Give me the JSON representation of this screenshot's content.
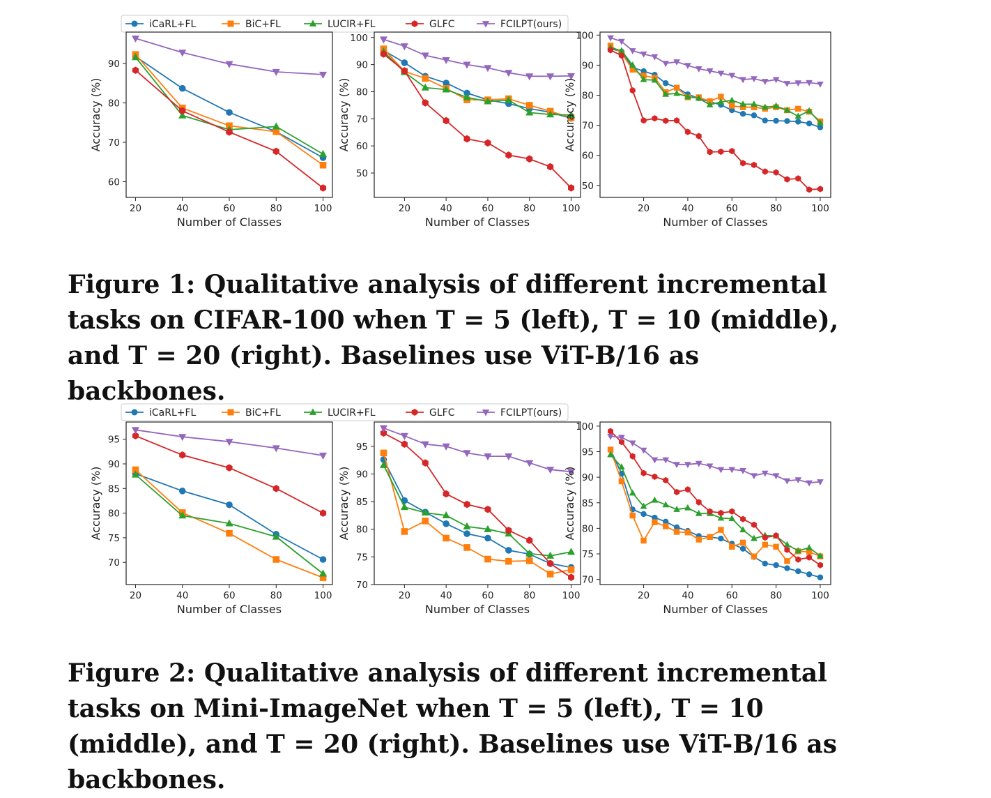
{
  "legend": {
    "entries": [
      {
        "name": "iCaRL+FL",
        "color": "#1f77b4",
        "marker": "circle"
      },
      {
        "name": "BiC+FL",
        "color": "#ff7f0e",
        "marker": "square"
      },
      {
        "name": "LUCIR+FL",
        "color": "#2ca02c",
        "marker": "triangle-up"
      },
      {
        "name": "GLFC",
        "color": "#d62728",
        "marker": "hexagon"
      },
      {
        "name": "FCILPT(ours)",
        "color": "#9467bd",
        "marker": "triangle-down"
      }
    ]
  },
  "figure1": {
    "caption": "Figure 1: Qualitative analysis of different incremental tasks on CIFAR-100 when T = 5 (left), T = 10 (middle), and T = 20 (right). Baselines use ViT-B/16 as backbones."
  },
  "figure2": {
    "caption": "Figure 2: Qualitative analysis of different incremental tasks on Mini-ImageNet when T = 5 (left), T = 10 (middle), and T = 20 (right). Baselines use ViT-B/16 as backbones."
  },
  "chart_data": [
    {
      "type": "line",
      "dataset": "CIFAR-100",
      "tasks": "T = 5",
      "xlabel": "Number of Classes",
      "ylabel": "Accuracy (%)",
      "xlim": [
        16,
        104
      ],
      "ylim": [
        56,
        98
      ],
      "xticks": [
        20,
        40,
        60,
        80,
        100
      ],
      "yticks": [
        60,
        70,
        80,
        90
      ],
      "x": [
        20,
        40,
        60,
        80,
        100
      ],
      "series": [
        {
          "name": "iCaRL+FL",
          "values": [
            91.8,
            83.7,
            77.6,
            72.7,
            66.1
          ]
        },
        {
          "name": "BiC+FL",
          "values": [
            92.3,
            78.7,
            74.2,
            72.7,
            64.2
          ]
        },
        {
          "name": "LUCIR+FL",
          "values": [
            91.6,
            76.8,
            73.2,
            74.0,
            67.0
          ]
        },
        {
          "name": "GLFC",
          "values": [
            88.3,
            78.0,
            72.6,
            67.7,
            58.4
          ]
        },
        {
          "name": "FCILPT(ours)",
          "values": [
            96.4,
            92.8,
            89.9,
            87.9,
            87.2
          ]
        }
      ]
    },
    {
      "type": "line",
      "dataset": "CIFAR-100",
      "tasks": "T = 10",
      "xlabel": "Number of Classes",
      "ylabel": "Accuracy (%)",
      "xlim": [
        5.5,
        104.5
      ],
      "ylim": [
        41,
        102
      ],
      "xticks": [
        20,
        40,
        60,
        80,
        100
      ],
      "yticks": [
        50,
        60,
        70,
        80,
        90,
        100
      ],
      "x": [
        10,
        20,
        30,
        40,
        50,
        60,
        70,
        80,
        90,
        100
      ],
      "series": [
        {
          "name": "iCaRL+FL",
          "values": [
            95.2,
            90.7,
            85.7,
            83.2,
            79.5,
            77.0,
            75.6,
            73.8,
            72.4,
            70.2
          ]
        },
        {
          "name": "BiC+FL",
          "values": [
            95.8,
            87.5,
            84.9,
            81.2,
            77.0,
            77.0,
            77.4,
            75.0,
            72.8,
            70.4
          ]
        },
        {
          "name": "LUCIR+FL",
          "values": [
            94.8,
            87.2,
            81.5,
            80.8,
            77.9,
            76.4,
            76.9,
            72.3,
            71.6,
            71.4
          ]
        },
        {
          "name": "GLFC",
          "values": [
            93.9,
            87.7,
            75.9,
            69.3,
            62.6,
            61.1,
            56.6,
            55.2,
            52.3,
            44.5
          ]
        },
        {
          "name": "FCILPT(ours)",
          "values": [
            99.3,
            96.8,
            93.4,
            91.7,
            90.0,
            88.8,
            87.0,
            85.7,
            85.7,
            85.8
          ]
        }
      ]
    },
    {
      "type": "line",
      "dataset": "CIFAR-100",
      "tasks": "T = 20",
      "xlabel": "Number of Classes",
      "ylabel": "Accuracy (%)",
      "xlim": [
        0.25,
        104.75
      ],
      "ylim": [
        46,
        101
      ],
      "xticks": [
        20,
        40,
        60,
        80,
        100
      ],
      "yticks": [
        50,
        60,
        70,
        80,
        90,
        100
      ],
      "x": [
        5,
        10,
        15,
        20,
        25,
        30,
        35,
        40,
        45,
        50,
        55,
        60,
        65,
        70,
        75,
        80,
        85,
        90,
        95,
        100
      ],
      "series": [
        {
          "name": "iCaRL+FL",
          "values": [
            95.5,
            94.5,
            89.2,
            88.0,
            86.8,
            84.0,
            82.5,
            80.3,
            79.0,
            77.8,
            76.8,
            75.0,
            73.8,
            73.3,
            71.6,
            71.5,
            71.4,
            71.2,
            70.6,
            69.3
          ]
        },
        {
          "name": "BiC+FL",
          "values": [
            96.5,
            94.0,
            88.5,
            86.5,
            85.8,
            81.0,
            82.5,
            79.3,
            79.3,
            78.0,
            79.5,
            76.5,
            76.0,
            76.0,
            75.5,
            76.0,
            75.0,
            75.5,
            74.5,
            71.3
          ]
        },
        {
          "name": "LUCIR+FL",
          "values": [
            95.8,
            94.8,
            90.0,
            85.2,
            85.0,
            80.3,
            80.6,
            79.5,
            79.0,
            76.8,
            77.8,
            78.3,
            77.0,
            77.0,
            76.0,
            76.4,
            75.0,
            73.0,
            74.8,
            70.8
          ]
        },
        {
          "name": "GLFC",
          "values": [
            95.0,
            93.2,
            81.6,
            71.6,
            72.3,
            71.5,
            71.6,
            67.8,
            66.4,
            61.1,
            61.2,
            61.4,
            57.4,
            56.8,
            54.6,
            54.3,
            52.0,
            52.3,
            48.6,
            48.8
          ]
        },
        {
          "name": "FCILPT(ours)",
          "values": [
            99.1,
            97.9,
            94.8,
            93.7,
            92.8,
            90.6,
            91.1,
            89.9,
            88.8,
            88.1,
            87.3,
            86.6,
            85.2,
            85.5,
            84.6,
            85.2,
            83.9,
            84.1,
            84.2,
            83.7
          ]
        }
      ]
    },
    {
      "type": "line",
      "dataset": "Mini-ImageNet",
      "tasks": "T = 5",
      "xlabel": "Number of Classes",
      "ylabel": "Accuracy (%)",
      "xlim": [
        16,
        104
      ],
      "ylim": [
        65.5,
        98.5
      ],
      "xticks": [
        20,
        40,
        60,
        80,
        100
      ],
      "yticks": [
        70,
        75,
        80,
        85,
        90,
        95
      ],
      "x": [
        20,
        40,
        60,
        80,
        100
      ],
      "series": [
        {
          "name": "iCaRL+FL",
          "values": [
            88.0,
            84.5,
            81.7,
            75.7,
            70.6
          ]
        },
        {
          "name": "BiC+FL",
          "values": [
            88.8,
            80.1,
            75.9,
            70.6,
            66.9
          ]
        },
        {
          "name": "LUCIR+FL",
          "values": [
            87.8,
            79.5,
            77.9,
            75.2,
            67.7
          ]
        },
        {
          "name": "GLFC",
          "values": [
            95.7,
            91.8,
            89.2,
            85.0,
            80.0
          ]
        },
        {
          "name": "FCILPT(ours)",
          "values": [
            96.9,
            95.5,
            94.5,
            93.2,
            91.7
          ]
        }
      ]
    },
    {
      "type": "line",
      "dataset": "Mini-ImageNet",
      "tasks": "T = 10",
      "xlabel": "Number of Classes",
      "ylabel": "Accuracy (%)",
      "xlim": [
        5.5,
        104.5
      ],
      "ylim": [
        70,
        99.4
      ],
      "xticks": [
        20,
        40,
        60,
        80,
        100
      ],
      "yticks": [
        70,
        75,
        80,
        85,
        90,
        95
      ],
      "x": [
        10,
        20,
        30,
        40,
        50,
        60,
        70,
        80,
        90,
        100
      ],
      "series": [
        {
          "name": "iCaRL+FL",
          "values": [
            92.6,
            85.2,
            83.1,
            81.0,
            79.2,
            78.4,
            76.2,
            75.5,
            73.8,
            73.1
          ]
        },
        {
          "name": "BiC+FL",
          "values": [
            93.8,
            79.6,
            81.5,
            78.4,
            76.7,
            74.6,
            74.2,
            74.3,
            71.9,
            72.7
          ]
        },
        {
          "name": "LUCIR+FL",
          "values": [
            91.6,
            84.0,
            83.0,
            82.5,
            80.5,
            80.0,
            79.2,
            75.6,
            75.2,
            75.9
          ]
        },
        {
          "name": "GLFC",
          "values": [
            97.4,
            95.4,
            92.0,
            86.4,
            84.5,
            83.6,
            79.8,
            78.0,
            73.8,
            71.3
          ]
        },
        {
          "name": "FCILPT(ours)",
          "values": [
            98.3,
            96.9,
            95.4,
            95.0,
            93.8,
            93.2,
            93.2,
            92.0,
            90.8,
            90.4
          ]
        }
      ]
    },
    {
      "type": "line",
      "dataset": "Mini-ImageNet",
      "tasks": "T = 20",
      "xlabel": "Number of Classes",
      "ylabel": "Accuracy (%)",
      "xlim": [
        0.25,
        104.75
      ],
      "ylim": [
        69,
        100.8
      ],
      "xticks": [
        20,
        40,
        60,
        80,
        100
      ],
      "yticks": [
        70,
        75,
        80,
        85,
        90,
        95,
        100
      ],
      "x": [
        5,
        10,
        15,
        20,
        25,
        30,
        35,
        40,
        45,
        50,
        55,
        60,
        65,
        70,
        75,
        80,
        85,
        90,
        95,
        100
      ],
      "series": [
        {
          "name": "iCaRL+FL",
          "values": [
            95.4,
            90.7,
            83.7,
            82.8,
            82.1,
            81.3,
            80.2,
            79.5,
            78.5,
            78.3,
            78.0,
            77.0,
            76.0,
            74.4,
            73.1,
            72.8,
            72.2,
            71.6,
            71.0,
            70.4
          ]
        },
        {
          "name": "BiC+FL",
          "values": [
            95.4,
            89.2,
            82.5,
            77.6,
            81.2,
            80.4,
            79.3,
            79.2,
            77.8,
            78.3,
            79.7,
            76.4,
            77.2,
            74.5,
            76.8,
            76.4,
            73.6,
            75.5,
            75.4,
            74.5
          ]
        },
        {
          "name": "LUCIR+FL",
          "values": [
            94.4,
            92.0,
            86.9,
            84.3,
            85.5,
            84.6,
            83.7,
            84.0,
            82.9,
            82.9,
            82.0,
            81.9,
            79.7,
            78.0,
            78.6,
            78.5,
            76.8,
            75.6,
            76.2,
            74.6
          ]
        },
        {
          "name": "GLFC",
          "values": [
            99.0,
            96.9,
            94.1,
            90.8,
            90.1,
            89.4,
            87.1,
            87.6,
            85.1,
            83.3,
            83.0,
            83.3,
            81.8,
            80.7,
            78.2,
            78.6,
            75.8,
            73.9,
            74.3,
            72.8
          ]
        },
        {
          "name": "FCILPT(ours)",
          "values": [
            98.0,
            97.8,
            96.7,
            95.3,
            93.4,
            93.4,
            92.5,
            92.5,
            92.7,
            92.2,
            91.5,
            91.5,
            91.3,
            90.3,
            90.8,
            90.3,
            89.3,
            89.5,
            88.9,
            89.1
          ]
        }
      ]
    }
  ]
}
